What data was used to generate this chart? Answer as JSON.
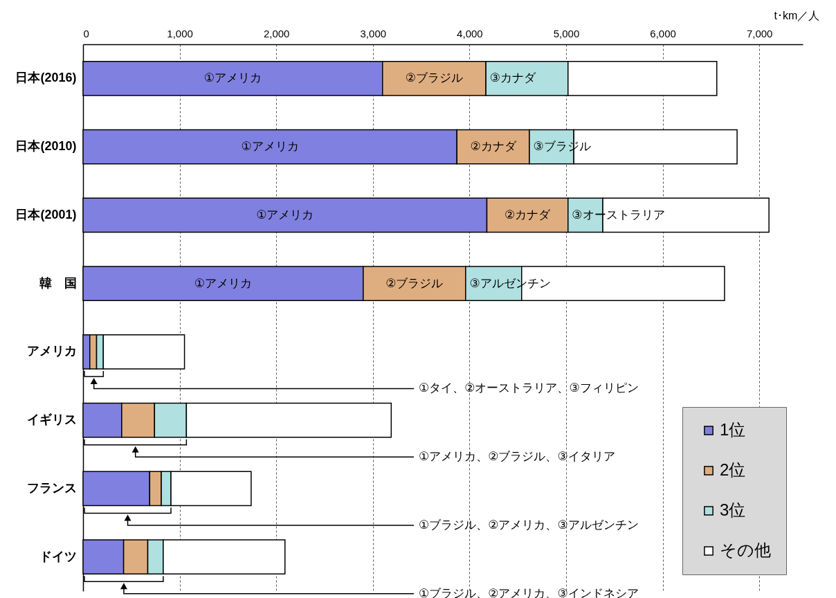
{
  "chart_data": {
    "type": "bar",
    "orientation": "horizontal",
    "stacked": true,
    "xlabel": "t･km／人",
    "categories": [
      "日本(2016)",
      "日本(2010)",
      "日本(2001)",
      "韓　国",
      "アメリカ",
      "イギリス",
      "フランス",
      "ドイツ"
    ],
    "series": [
      {
        "name": "1位",
        "color": "#8080e0",
        "values": [
          3100,
          3870,
          4180,
          2900,
          70,
          400,
          690,
          420
        ],
        "value_labels": [
          "①アメリカ",
          "①アメリカ",
          "①アメリカ",
          "①アメリカ",
          null,
          null,
          null,
          null
        ]
      },
      {
        "name": "2位",
        "color": "#dfae80",
        "values": [
          1070,
          750,
          840,
          1060,
          70,
          340,
          120,
          250
        ],
        "value_labels": [
          "②ブラジル",
          "②カナダ",
          "②カナダ",
          "②ブラジル",
          null,
          null,
          null,
          null
        ]
      },
      {
        "name": "3位",
        "color": "#b0e0e0",
        "values": [
          850,
          460,
          360,
          580,
          70,
          330,
          100,
          160
        ],
        "value_labels": [
          "③カナダ",
          "③ブラジル",
          "③オーストラリア",
          "③アルゼンチン",
          null,
          null,
          null,
          null
        ]
      },
      {
        "name": "その他",
        "color": "#ffffff",
        "values": [
          1540,
          1690,
          1720,
          2100,
          840,
          2120,
          830,
          1260
        ]
      }
    ],
    "xlim": [
      0,
      7450
    ],
    "xticks": [
      0,
      {
        "value": 1000,
        "label": "1,000"
      },
      {
        "value": 2000,
        "label": "2,000"
      },
      {
        "value": 3000,
        "label": "3,000"
      },
      {
        "value": 4000,
        "label": "4,000"
      },
      {
        "value": 5000,
        "label": "5,000"
      },
      {
        "value": 6000,
        "label": "6,000"
      },
      {
        "value": 7000,
        "label": "7,000"
      }
    ],
    "grid": "x",
    "legend": "bottom right",
    "annotations": [
      "①タイ、②オーストラリア、③フィリピン",
      "①アメリカ、②ブラジル、③イタリア",
      "①ブラジル、②アメリカ、③アルゼンチン",
      "①ブラジル、②アメリカ、③インドネシア"
    ]
  }
}
